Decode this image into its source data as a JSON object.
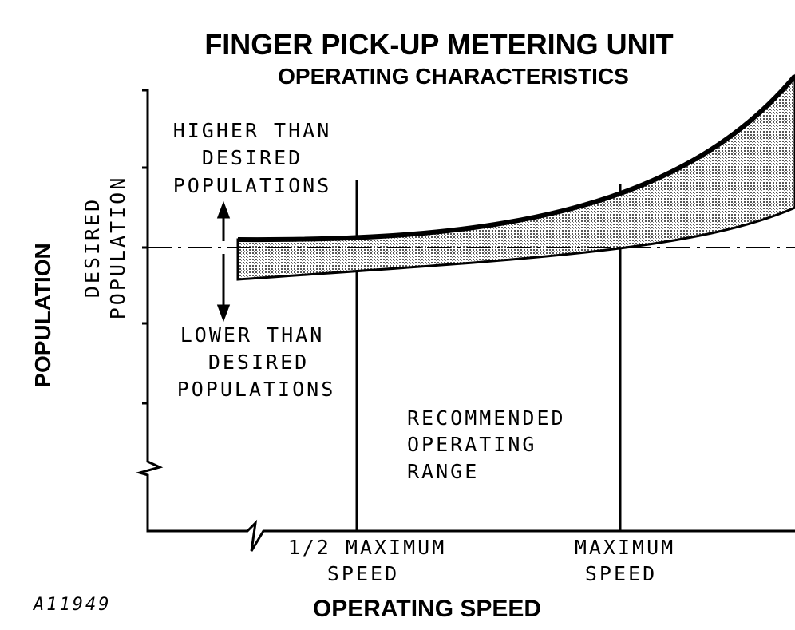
{
  "header": {
    "title": "FINGER PICK-UP METERING UNIT",
    "subtitle": "OPERATING CHARACTERISTICS"
  },
  "y_axis": {
    "label": "POPULATION",
    "sublabel": [
      "DESIRED",
      "POPULATION"
    ]
  },
  "annotations": {
    "higher": [
      "HIGHER THAN",
      "DESIRED",
      "POPULATIONS"
    ],
    "lower": [
      "LOWER THAN",
      "DESIRED",
      "POPULATIONS"
    ],
    "range": [
      "RECOMMENDED",
      "OPERATING",
      "RANGE"
    ]
  },
  "x_axis": {
    "label": "OPERATING SPEED",
    "half_speed": [
      "1/2 MAXIMUM",
      "SPEED"
    ],
    "max_speed": [
      "MAXIMUM",
      "SPEED"
    ]
  },
  "figure_id": "A11949"
}
